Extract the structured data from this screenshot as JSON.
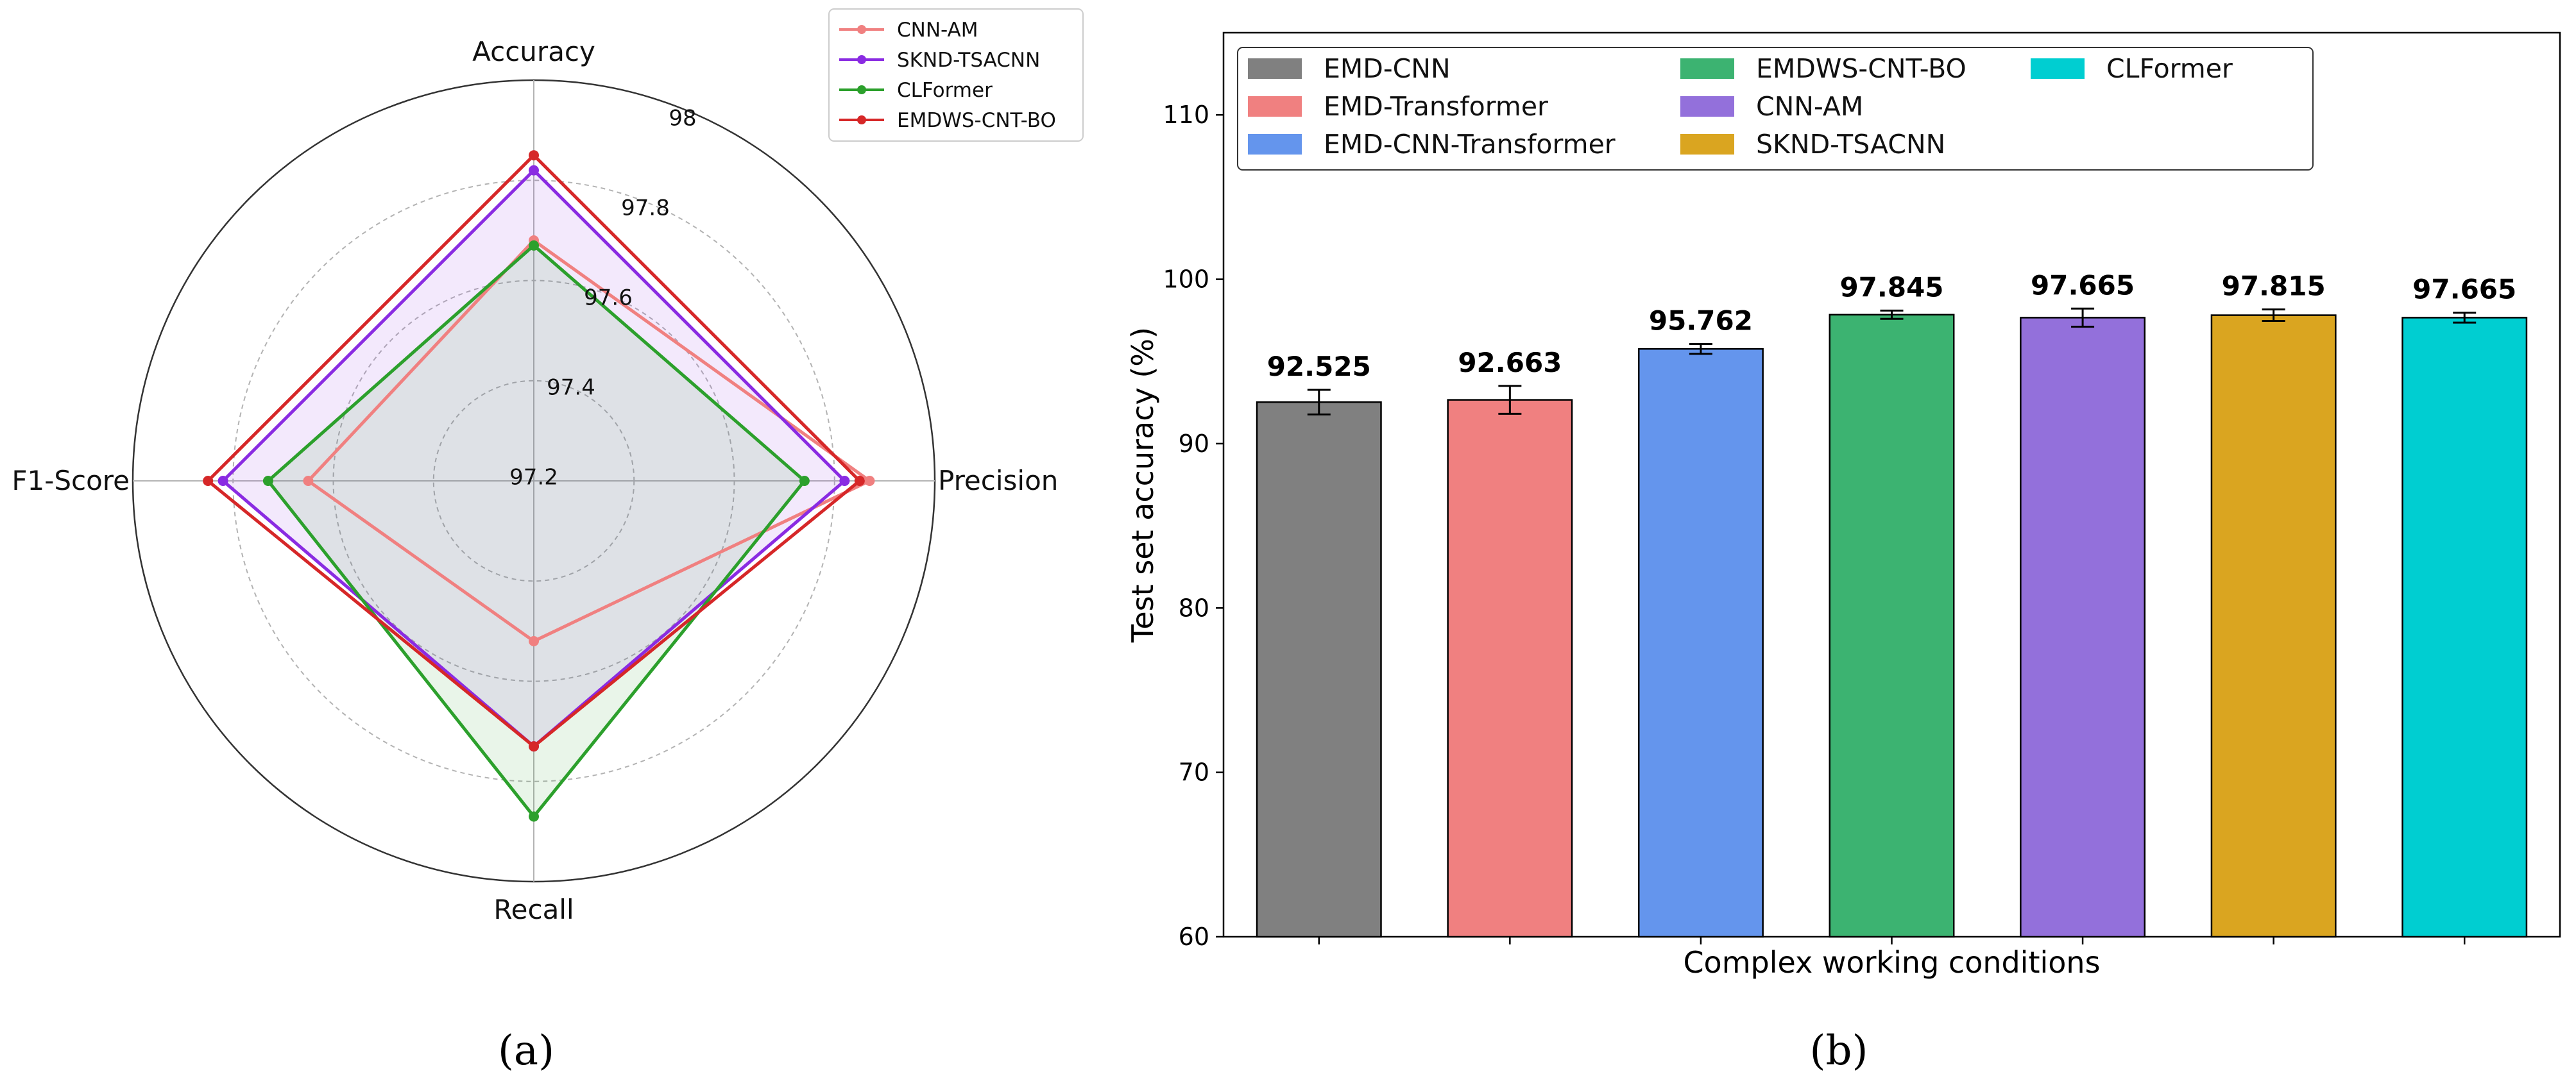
{
  "chart_data": [
    {
      "type": "radar",
      "panel_label": "(a)",
      "axes": [
        "Accuracy",
        "Precision",
        "Recall",
        "F1-Score"
      ],
      "rlim": [
        97.2,
        98.0
      ],
      "rings": [
        97.4,
        97.6,
        97.8
      ],
      "ring_labels": [
        "97.2",
        "97.4",
        "97.6",
        "97.8",
        "98"
      ],
      "series": [
        {
          "name": "CNN-AM",
          "color": "#f08080",
          "values": [
            97.68,
            97.87,
            97.52,
            97.65
          ],
          "fill": false
        },
        {
          "name": "SKND-TSACNN",
          "color": "#8a2be2",
          "values": [
            97.82,
            97.82,
            97.73,
            97.82
          ],
          "fill": true
        },
        {
          "name": "CLFormer",
          "color": "#2ca02c",
          "values": [
            97.67,
            97.74,
            97.87,
            97.73
          ],
          "fill": true
        },
        {
          "name": "EMDWS-CNT-BO",
          "color": "#d62728",
          "values": [
            97.85,
            97.85,
            97.73,
            97.85
          ],
          "fill": false
        }
      ],
      "legend_position": "top-right"
    },
    {
      "type": "bar",
      "panel_label": "(b)",
      "xlabel": "Complex working conditions",
      "ylabel": "Test set accuracy (%)",
      "ylim": [
        60,
        115
      ],
      "yticks": [
        60,
        70,
        80,
        90,
        100,
        110
      ],
      "categories": [
        "EMD-CNN",
        "EMD-Transformer",
        "EMD-CNN-Transformer",
        "EMDWS-CNT-BO",
        "CNN-AM",
        "SKND-TSACNN",
        "CLFormer"
      ],
      "values": [
        92.525,
        92.663,
        95.762,
        97.845,
        97.665,
        97.815,
        97.665
      ],
      "value_labels": [
        "92.525",
        "92.663",
        "95.762",
        "97.845",
        "97.665",
        "97.815",
        "97.665"
      ],
      "errors": [
        0.75,
        0.85,
        0.3,
        0.25,
        0.55,
        0.35,
        0.3
      ],
      "colors": [
        "#808080",
        "#f08080",
        "#6495ed",
        "#3cb371",
        "#9370db",
        "#daa520",
        "#00ced1"
      ],
      "legend_position": "top-left",
      "legend_columns": 3
    }
  ]
}
